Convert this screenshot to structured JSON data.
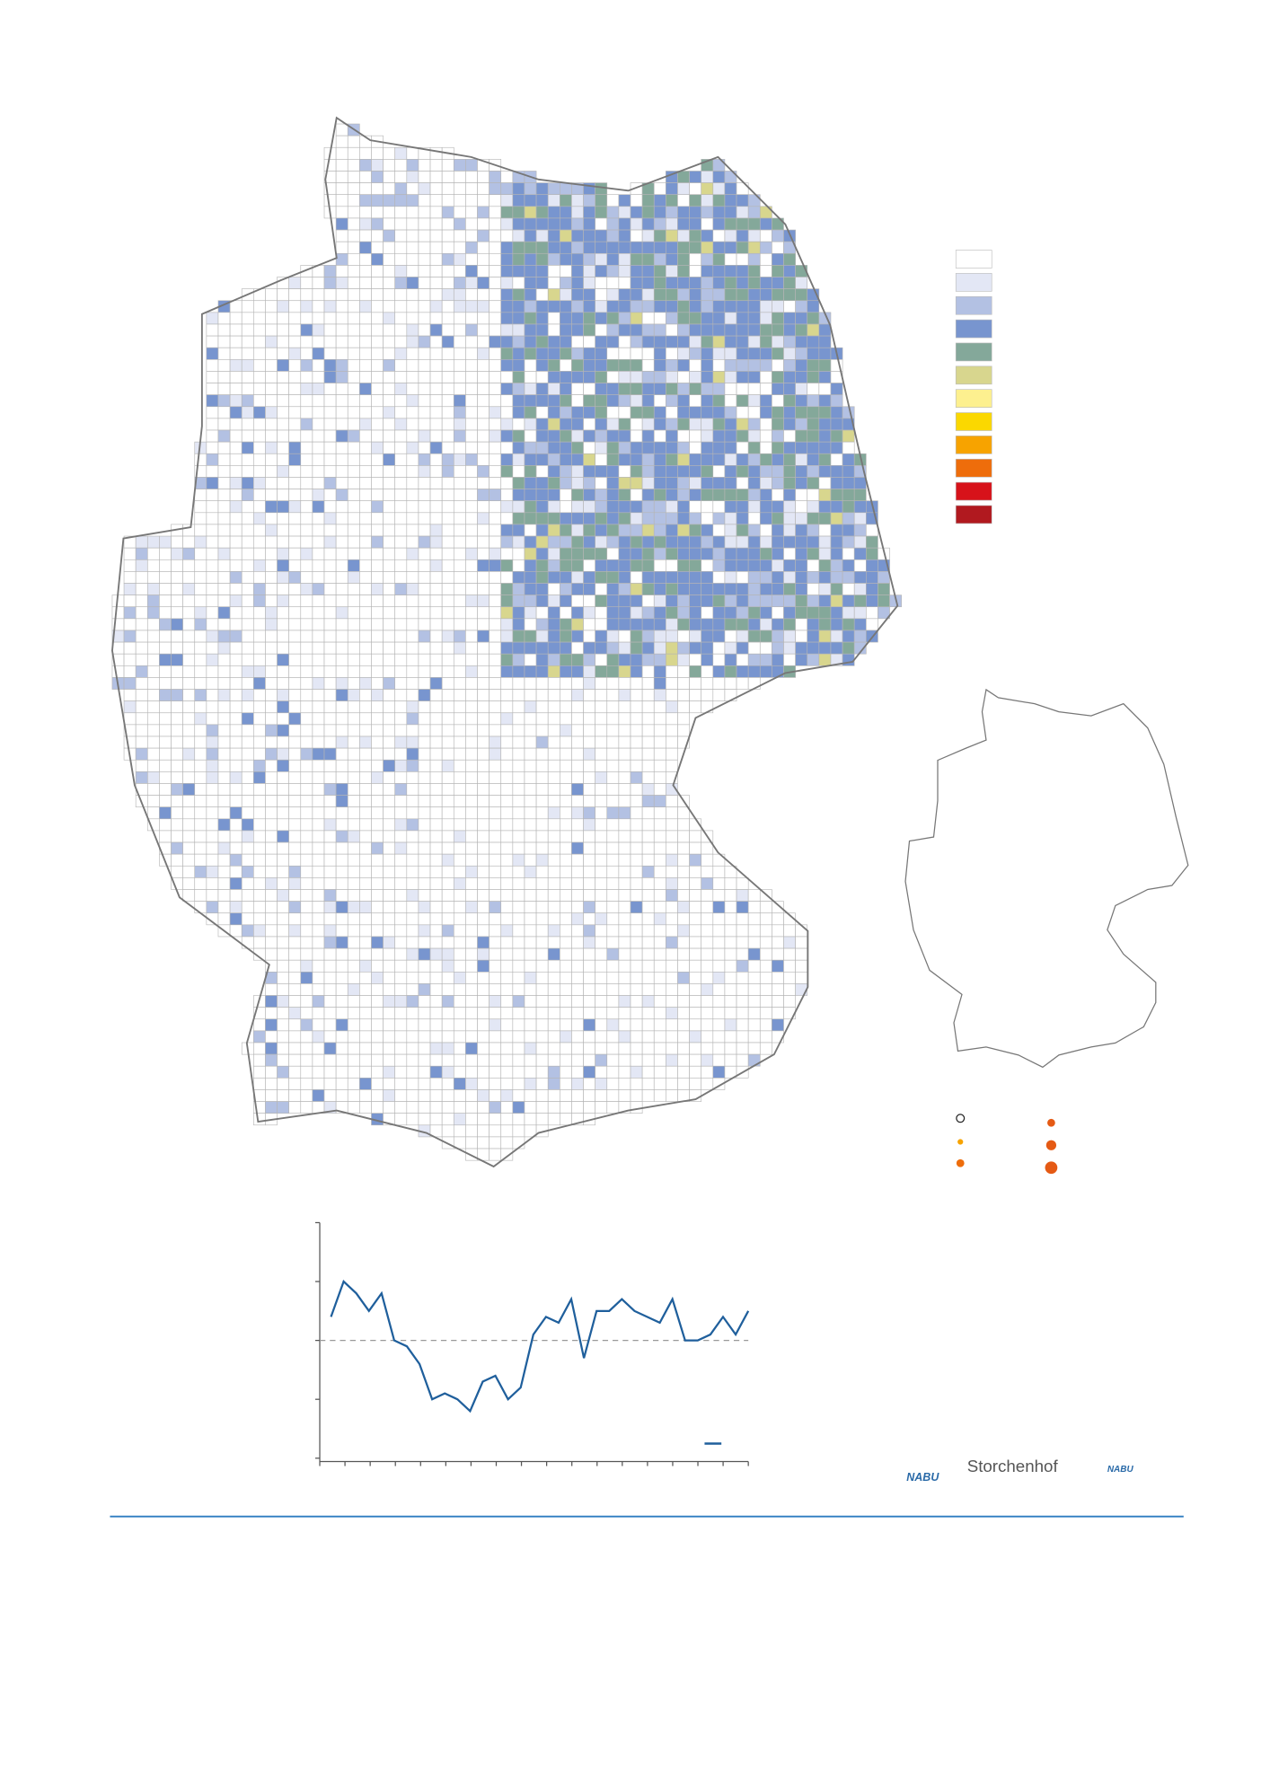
{
  "map": {
    "legend_colors": [
      "#ffffff",
      "#e3e7f5",
      "#b3c1e3",
      "#7895cf",
      "#84a89a",
      "#d8d68e",
      "#fdf08f",
      "#fbd800",
      "#f7a300",
      "#ee6d0b",
      "#d7121a",
      "#b1191f"
    ]
  },
  "chart_data": {
    "type": "line",
    "values": [
      2.4,
      3.0,
      2.8,
      2.5,
      2.8,
      2.0,
      1.9,
      1.6,
      1.0,
      1.1,
      1.0,
      0.8,
      1.3,
      1.4,
      1.0,
      1.2,
      2.1,
      2.4,
      2.3,
      2.7,
      1.7,
      2.5,
      2.5,
      2.7,
      2.5,
      2.4,
      2.3,
      2.7,
      2.0,
      2.0,
      2.1,
      2.4,
      2.1,
      2.5
    ],
    "color": "#1f5f9c",
    "ylim": [
      0,
      4
    ],
    "yticks": [
      0,
      1,
      2,
      3,
      4
    ],
    "reference": 2
  },
  "logos": [
    "NABU",
    "Storchenhof",
    "NABU"
  ]
}
